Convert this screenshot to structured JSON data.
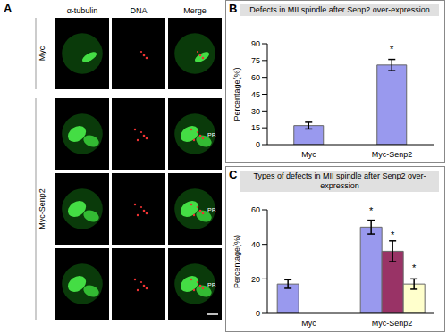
{
  "panel_a": {
    "panel_label": "A",
    "columns": [
      "α-tubulin",
      "DNA",
      "Merge"
    ],
    "groups": [
      {
        "label": "Myc",
        "images": [
          {}
        ]
      },
      {
        "label": "Myc-Senp2",
        "images": [
          {
            "annotation": "PB"
          },
          {
            "annotation": "PB"
          },
          {
            "annotation": "PB"
          }
        ]
      }
    ]
  },
  "chart_data": [
    {
      "panel_label": "B",
      "type": "bar",
      "title": "Defects in MII spindle after Senp2  over-expression",
      "y_label": "Percentage(%)",
      "categories": [
        "Myc",
        "Myc-Senp2"
      ],
      "series": [
        {
          "color": "#9999ee",
          "values": [
            17,
            71
          ],
          "error": [
            3,
            5
          ],
          "significance": [
            null,
            "*"
          ]
        }
      ],
      "ylim": [
        0,
        90
      ],
      "yticks": [
        0,
        15,
        30,
        45,
        60,
        75,
        90
      ],
      "grid": false
    },
    {
      "panel_label": "C",
      "type": "bar",
      "title": "Types of defects in MII spindle after Senp2 over-expression",
      "y_label": "Percentage(%)",
      "categories": [
        "Myc",
        "Myc-Senp2"
      ],
      "series": [
        {
          "color": "#9999ee",
          "values": [
            17,
            50
          ],
          "error": [
            2.5,
            4
          ],
          "significance": [
            null,
            "*"
          ]
        },
        {
          "color": "#993366",
          "values": [
            null,
            36
          ],
          "error": [
            null,
            6
          ],
          "significance": [
            null,
            "*"
          ]
        },
        {
          "color": "#ffffcc",
          "values": [
            null,
            17
          ],
          "error": [
            null,
            3
          ],
          "significance": [
            null,
            "*"
          ]
        }
      ],
      "ylim": [
        0,
        60
      ],
      "yticks": [
        0,
        20,
        40,
        60
      ],
      "grid": false
    }
  ]
}
